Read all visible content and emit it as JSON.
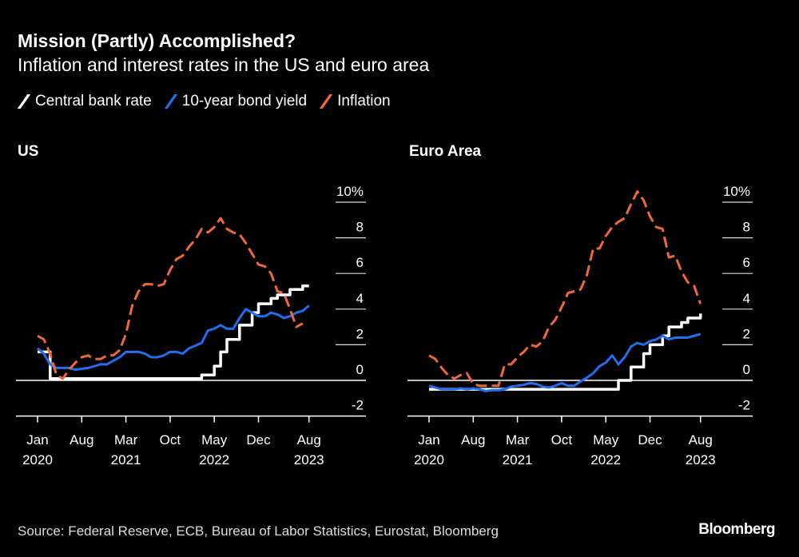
{
  "header": {
    "title": "Mission (Partly) Accomplished?",
    "subtitle": "Inflation and interest rates in the US and euro area"
  },
  "legend": [
    {
      "label": "Central bank rate",
      "color": "#ffffff",
      "style": "solid"
    },
    {
      "label": "10-year bond yield",
      "color": "#1f6ff0",
      "style": "solid"
    },
    {
      "label": "Inflation",
      "color": "#f0683a",
      "style": "dashed"
    }
  ],
  "footer": {
    "source": "Source: Federal Reserve, ECB, Bureau of Labor Statistics, Eurostat, Bloomberg",
    "logo": "Bloomberg"
  },
  "chart_data": [
    {
      "type": "line",
      "title": "US",
      "x_start": "2020-01",
      "x_step": "month",
      "x_ticks": [
        {
          "month_index": 0,
          "label": "Jan",
          "year": "2020"
        },
        {
          "month_index": 7,
          "label": "Aug",
          "year": ""
        },
        {
          "month_index": 14,
          "label": "Mar",
          "year": "2021"
        },
        {
          "month_index": 21,
          "label": "Oct",
          "year": ""
        },
        {
          "month_index": 28,
          "label": "May",
          "year": "2022"
        },
        {
          "month_index": 35,
          "label": "Dec",
          "year": ""
        },
        {
          "month_index": 43,
          "label": "Aug",
          "year": "2023"
        }
      ],
      "y_ticks": [
        {
          "value": 10,
          "label": "10%"
        },
        {
          "value": 8,
          "label": "8"
        },
        {
          "value": 6,
          "label": "6"
        },
        {
          "value": 4,
          "label": "4"
        },
        {
          "value": 2,
          "label": "2"
        },
        {
          "value": 0,
          "label": "0"
        },
        {
          "value": -2,
          "label": "-2"
        }
      ],
      "ylim": [
        -2,
        10
      ],
      "series": [
        {
          "name": "Central bank rate",
          "color": "#ffffff",
          "step": true,
          "values": [
            1.6,
            1.6,
            0.1,
            0.1,
            0.1,
            0.1,
            0.1,
            0.1,
            0.1,
            0.1,
            0.1,
            0.1,
            0.1,
            0.1,
            0.1,
            0.1,
            0.1,
            0.1,
            0.1,
            0.1,
            0.1,
            0.1,
            0.1,
            0.1,
            0.1,
            0.1,
            0.3,
            0.3,
            0.8,
            1.6,
            2.3,
            2.3,
            3.1,
            3.1,
            3.8,
            4.3,
            4.3,
            4.6,
            4.8,
            4.8,
            5.1,
            5.1,
            5.3,
            5.3
          ]
        },
        {
          "name": "10-year bond yield",
          "color": "#1f6ff0",
          "values": [
            1.8,
            1.5,
            0.9,
            0.7,
            0.7,
            0.7,
            0.6,
            0.65,
            0.7,
            0.8,
            0.9,
            0.9,
            1.1,
            1.3,
            1.6,
            1.6,
            1.6,
            1.5,
            1.3,
            1.3,
            1.4,
            1.6,
            1.6,
            1.5,
            1.8,
            1.95,
            2.1,
            2.8,
            2.9,
            3.1,
            2.9,
            2.9,
            3.5,
            4.0,
            3.8,
            3.6,
            3.6,
            3.8,
            3.7,
            3.5,
            3.6,
            3.8,
            3.9,
            4.2
          ]
        },
        {
          "name": "Inflation",
          "color": "#f0683a",
          "dashed": true,
          "values": [
            2.5,
            2.3,
            1.5,
            0.3,
            0.1,
            0.6,
            1.0,
            1.3,
            1.4,
            1.2,
            1.2,
            1.4,
            1.4,
            1.7,
            2.6,
            4.2,
            5.0,
            5.4,
            5.4,
            5.3,
            5.4,
            6.2,
            6.8,
            7.0,
            7.5,
            7.9,
            8.5,
            8.3,
            8.6,
            9.1,
            8.5,
            8.3,
            8.2,
            7.7,
            7.1,
            6.5,
            6.4,
            6.0,
            5.0,
            4.9,
            4.0,
            3.0,
            3.2
          ]
        }
      ]
    },
    {
      "type": "line",
      "title": "Euro Area",
      "x_start": "2020-01",
      "x_step": "month",
      "x_ticks": [
        {
          "month_index": 0,
          "label": "Jan",
          "year": "2020"
        },
        {
          "month_index": 7,
          "label": "Aug",
          "year": ""
        },
        {
          "month_index": 14,
          "label": "Mar",
          "year": "2021"
        },
        {
          "month_index": 21,
          "label": "Oct",
          "year": ""
        },
        {
          "month_index": 28,
          "label": "May",
          "year": "2022"
        },
        {
          "month_index": 35,
          "label": "Dec",
          "year": ""
        },
        {
          "month_index": 43,
          "label": "Aug",
          "year": "2023"
        }
      ],
      "y_ticks": [
        {
          "value": 10,
          "label": "10%"
        },
        {
          "value": 8,
          "label": "8"
        },
        {
          "value": 6,
          "label": "6"
        },
        {
          "value": 4,
          "label": "4"
        },
        {
          "value": 2,
          "label": "2"
        },
        {
          "value": 0,
          "label": "0"
        },
        {
          "value": -2,
          "label": "-2"
        }
      ],
      "ylim": [
        -2,
        10
      ],
      "series": [
        {
          "name": "Central bank rate",
          "color": "#ffffff",
          "step": true,
          "values": [
            -0.5,
            -0.5,
            -0.5,
            -0.5,
            -0.5,
            -0.5,
            -0.5,
            -0.5,
            -0.5,
            -0.5,
            -0.5,
            -0.5,
            -0.5,
            -0.5,
            -0.5,
            -0.5,
            -0.5,
            -0.5,
            -0.5,
            -0.5,
            -0.5,
            -0.5,
            -0.5,
            -0.5,
            -0.5,
            -0.5,
            -0.5,
            -0.5,
            -0.5,
            -0.5,
            0.0,
            0.0,
            0.75,
            0.75,
            1.5,
            2.0,
            2.0,
            2.5,
            3.0,
            3.0,
            3.25,
            3.5,
            3.5,
            3.75
          ]
        },
        {
          "name": "10-year bond yield",
          "color": "#1f6ff0",
          "values": [
            -0.3,
            -0.4,
            -0.5,
            -0.5,
            -0.5,
            -0.45,
            -0.5,
            -0.45,
            -0.5,
            -0.6,
            -0.55,
            -0.55,
            -0.5,
            -0.35,
            -0.3,
            -0.25,
            -0.15,
            -0.2,
            -0.35,
            -0.4,
            -0.3,
            -0.15,
            -0.3,
            -0.3,
            -0.05,
            0.15,
            0.4,
            0.8,
            1.0,
            1.4,
            0.9,
            1.3,
            1.9,
            2.1,
            2.0,
            2.2,
            2.3,
            2.5,
            2.3,
            2.4,
            2.4,
            2.4,
            2.5,
            2.6
          ]
        },
        {
          "name": "Inflation",
          "color": "#f0683a",
          "dashed": true,
          "values": [
            1.4,
            1.2,
            0.7,
            0.3,
            0.1,
            0.3,
            0.4,
            -0.2,
            -0.3,
            -0.3,
            -0.3,
            -0.3,
            0.9,
            0.9,
            1.3,
            1.6,
            2.0,
            1.9,
            2.2,
            3.0,
            3.4,
            4.1,
            4.9,
            5.0,
            5.1,
            5.9,
            7.4,
            7.4,
            8.1,
            8.6,
            8.9,
            9.1,
            9.9,
            10.6,
            10.1,
            9.2,
            8.6,
            8.5,
            6.9,
            7.0,
            6.1,
            5.5,
            5.3,
            4.3
          ]
        }
      ]
    }
  ]
}
